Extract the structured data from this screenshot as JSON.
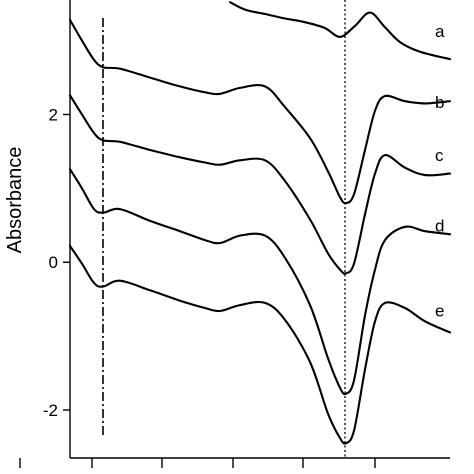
{
  "chart_data": {
    "type": "line",
    "title": "",
    "xlabel": "",
    "ylabel": "Absorbance",
    "ylim": [
      -2.65,
      3.55
    ],
    "xlim": [
      0,
      380
    ],
    "y_ticks": [
      -2,
      0,
      2
    ],
    "grid": false,
    "legend": "none",
    "reference_lines": [
      {
        "style": "dash-dot",
        "x": 33
      },
      {
        "style": "dotted",
        "x": 275
      }
    ],
    "series": [
      {
        "name": "a",
        "label_at": [
          365,
          3.13
        ],
        "points": [
          [
            160,
            3.52
          ],
          [
            175,
            3.42
          ],
          [
            195,
            3.36
          ],
          [
            215,
            3.3
          ],
          [
            235,
            3.25
          ],
          [
            255,
            3.17
          ],
          [
            270,
            3.05
          ],
          [
            285,
            3.2
          ],
          [
            300,
            3.38
          ],
          [
            315,
            3.18
          ],
          [
            330,
            2.98
          ],
          [
            350,
            2.85
          ],
          [
            380,
            2.75
          ]
        ]
      },
      {
        "name": "b",
        "label_at": [
          365,
          2.17
        ],
        "points": [
          [
            0,
            3.28
          ],
          [
            12,
            3.0
          ],
          [
            24,
            2.74
          ],
          [
            33,
            2.64
          ],
          [
            50,
            2.62
          ],
          [
            80,
            2.5
          ],
          [
            110,
            2.38
          ],
          [
            135,
            2.3
          ],
          [
            150,
            2.28
          ],
          [
            170,
            2.36
          ],
          [
            195,
            2.38
          ],
          [
            215,
            2.1
          ],
          [
            240,
            1.68
          ],
          [
            258,
            1.23
          ],
          [
            270,
            0.88
          ],
          [
            276,
            0.8
          ],
          [
            284,
            0.92
          ],
          [
            295,
            1.52
          ],
          [
            305,
            2.05
          ],
          [
            315,
            2.25
          ],
          [
            335,
            2.18
          ],
          [
            355,
            2.15
          ],
          [
            380,
            2.18
          ]
        ]
      },
      {
        "name": "c",
        "label_at": [
          365,
          1.45
        ],
        "points": [
          [
            0,
            2.26
          ],
          [
            12,
            2.0
          ],
          [
            24,
            1.75
          ],
          [
            33,
            1.65
          ],
          [
            50,
            1.63
          ],
          [
            80,
            1.52
          ],
          [
            110,
            1.42
          ],
          [
            135,
            1.35
          ],
          [
            150,
            1.32
          ],
          [
            170,
            1.38
          ],
          [
            195,
            1.38
          ],
          [
            215,
            1.1
          ],
          [
            240,
            0.58
          ],
          [
            258,
            0.12
          ],
          [
            270,
            -0.1
          ],
          [
            276,
            -0.15
          ],
          [
            284,
            -0.02
          ],
          [
            295,
            0.65
          ],
          [
            305,
            1.2
          ],
          [
            315,
            1.45
          ],
          [
            335,
            1.28
          ],
          [
            355,
            1.18
          ],
          [
            380,
            1.2
          ]
        ]
      },
      {
        "name": "d",
        "label_at": [
          365,
          0.5
        ],
        "points": [
          [
            0,
            1.26
          ],
          [
            12,
            1.0
          ],
          [
            24,
            0.72
          ],
          [
            33,
            0.67
          ],
          [
            50,
            0.72
          ],
          [
            80,
            0.56
          ],
          [
            110,
            0.42
          ],
          [
            135,
            0.3
          ],
          [
            150,
            0.26
          ],
          [
            170,
            0.36
          ],
          [
            195,
            0.36
          ],
          [
            215,
            0.06
          ],
          [
            240,
            -0.58
          ],
          [
            258,
            -1.3
          ],
          [
            270,
            -1.7
          ],
          [
            276,
            -1.78
          ],
          [
            284,
            -1.6
          ],
          [
            295,
            -0.72
          ],
          [
            305,
            -0.1
          ],
          [
            315,
            0.3
          ],
          [
            335,
            0.48
          ],
          [
            355,
            0.42
          ],
          [
            380,
            0.38
          ]
        ]
      },
      {
        "name": "e",
        "label_at": [
          365,
          -0.65
        ],
        "points": [
          [
            0,
            0.22
          ],
          [
            12,
            -0.02
          ],
          [
            24,
            -0.28
          ],
          [
            33,
            -0.33
          ],
          [
            50,
            -0.25
          ],
          [
            80,
            -0.38
          ],
          [
            110,
            -0.52
          ],
          [
            135,
            -0.62
          ],
          [
            150,
            -0.66
          ],
          [
            170,
            -0.58
          ],
          [
            195,
            -0.55
          ],
          [
            215,
            -0.78
          ],
          [
            240,
            -1.35
          ],
          [
            258,
            -2.05
          ],
          [
            270,
            -2.38
          ],
          [
            276,
            -2.45
          ],
          [
            284,
            -2.28
          ],
          [
            295,
            -1.45
          ],
          [
            305,
            -0.8
          ],
          [
            315,
            -0.55
          ],
          [
            335,
            -0.62
          ],
          [
            355,
            -0.8
          ],
          [
            380,
            -0.95
          ]
        ]
      }
    ]
  }
}
